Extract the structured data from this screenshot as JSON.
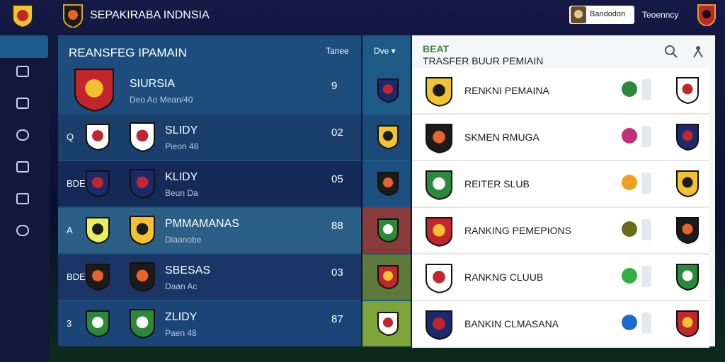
{
  "header": {
    "title": "SEPAKIRABA INDNSIA",
    "user": "Bandodon",
    "currency": "Teoenncy"
  },
  "left_panel": {
    "title": "REANSFEG IPAMAIN",
    "column": "Tanee",
    "filter": "Dve",
    "rows": [
      {
        "name": "SIURSIA",
        "detail": "Deo Ao Mean/40",
        "score": "9"
      },
      {
        "tag": "Q",
        "name": "SLIDY",
        "detail": "Pieon 48",
        "score": "02"
      },
      {
        "tag": "BDE",
        "name": "KLIDY",
        "detail": "Beun Da",
        "score": "05"
      },
      {
        "tag": "A",
        "name": "PMMAMANAS",
        "detail": "Diaanobe",
        "score": "88"
      },
      {
        "tag": "BDE",
        "name": "SBESAS",
        "detail": "Daan Ac",
        "score": "03"
      },
      {
        "tag": "3",
        "name": "ZLIDY",
        "detail": "Paen 48",
        "score": "87"
      }
    ]
  },
  "right_panel": {
    "title": "BEAT",
    "subtitle": "TRASFER BUUR PEMIAIN",
    "rows": [
      "RENKNI PEMAINA",
      "SKMEN RMUGA",
      "REITER SLUB",
      "RANKING PEMEPIONS",
      "RANKNG CLUUB",
      "BANKIN CLMASANA"
    ]
  }
}
